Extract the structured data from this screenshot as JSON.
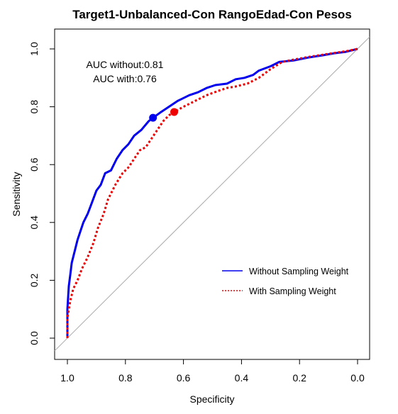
{
  "chart_data": {
    "type": "line",
    "title": "Target1-Unbalanced-Con RangoEdad-Con Pesos",
    "xlabel": "Specificity",
    "ylabel": "Sensitivity",
    "xlim": [
      1.0,
      0.0
    ],
    "ylim": [
      0.0,
      1.0
    ],
    "x_reversed": true,
    "x_ticks": [
      "1.0",
      "0.8",
      "0.6",
      "0.4",
      "0.2",
      "0.0"
    ],
    "y_ticks": [
      "0.0",
      "0.2",
      "0.4",
      "0.6",
      "0.8",
      "1.0"
    ],
    "grid": false,
    "legend_position": "bottom-right",
    "annotations": [
      "AUC without:0.81",
      "AUC with:0.76"
    ],
    "diagonal_color": "#aaaaaa",
    "series": [
      {
        "name": "Without Sampling Weight",
        "color": "#0000ee",
        "line_style": "solid",
        "x": [
          1.0,
          1.0,
          0.995,
          0.99,
          0.985,
          0.975,
          0.965,
          0.955,
          0.945,
          0.93,
          0.915,
          0.9,
          0.885,
          0.87,
          0.85,
          0.83,
          0.81,
          0.79,
          0.77,
          0.745,
          0.72,
          0.705,
          0.68,
          0.65,
          0.62,
          0.58,
          0.55,
          0.52,
          0.49,
          0.45,
          0.42,
          0.39,
          0.36,
          0.34,
          0.3,
          0.27,
          0.22,
          0.17,
          0.12,
          0.08,
          0.04,
          0.0
        ],
        "y": [
          0.0,
          0.1,
          0.18,
          0.22,
          0.26,
          0.3,
          0.34,
          0.37,
          0.4,
          0.43,
          0.47,
          0.51,
          0.53,
          0.57,
          0.58,
          0.62,
          0.65,
          0.67,
          0.7,
          0.72,
          0.75,
          0.762,
          0.78,
          0.8,
          0.82,
          0.84,
          0.85,
          0.865,
          0.875,
          0.88,
          0.895,
          0.9,
          0.91,
          0.925,
          0.94,
          0.955,
          0.96,
          0.97,
          0.978,
          0.985,
          0.99,
          1.0
        ]
      },
      {
        "name": "With Sampling Weight",
        "color": "#ee0000",
        "line_style": "dotted",
        "x": [
          1.0,
          1.0,
          0.99,
          0.98,
          0.965,
          0.95,
          0.93,
          0.91,
          0.895,
          0.875,
          0.86,
          0.835,
          0.81,
          0.79,
          0.77,
          0.75,
          0.73,
          0.71,
          0.69,
          0.67,
          0.65,
          0.632,
          0.6,
          0.56,
          0.52,
          0.48,
          0.45,
          0.42,
          0.38,
          0.34,
          0.3,
          0.26,
          0.22,
          0.17,
          0.12,
          0.08,
          0.04,
          0.0
        ],
        "y": [
          0.0,
          0.07,
          0.13,
          0.17,
          0.2,
          0.24,
          0.28,
          0.33,
          0.38,
          0.43,
          0.48,
          0.53,
          0.57,
          0.59,
          0.62,
          0.65,
          0.66,
          0.69,
          0.72,
          0.75,
          0.77,
          0.782,
          0.8,
          0.82,
          0.84,
          0.855,
          0.865,
          0.87,
          0.88,
          0.9,
          0.93,
          0.955,
          0.963,
          0.972,
          0.98,
          0.986,
          0.992,
          1.0
        ]
      }
    ],
    "highlighted_points": [
      {
        "series": "Without Sampling Weight",
        "x": 0.705,
        "y": 0.762,
        "color": "#0000ee"
      },
      {
        "series": "With Sampling Weight",
        "x": 0.632,
        "y": 0.782,
        "color": "#ee0000"
      }
    ]
  }
}
